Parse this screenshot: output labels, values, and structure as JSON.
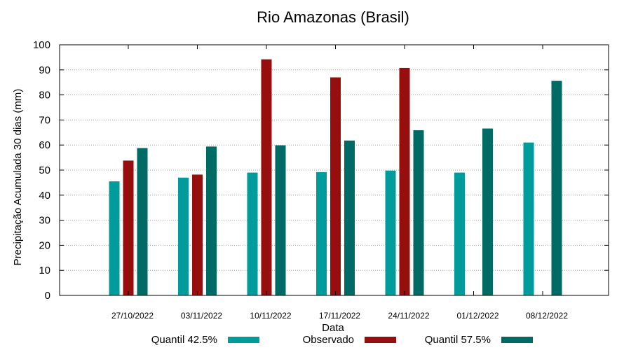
{
  "chart_data": {
    "type": "bar",
    "title": "Rio Amazonas (Brasil)",
    "xlabel": "Data",
    "ylabel": "Precipitação Acumulada 30 dias (mm)",
    "ylim": [
      0,
      100
    ],
    "yticks": [
      0,
      10,
      20,
      30,
      40,
      50,
      60,
      70,
      80,
      90,
      100
    ],
    "grid": true,
    "legend_position": "bottom",
    "categories": [
      "27/10/2022",
      "03/11/2022",
      "10/11/2022",
      "17/11/2022",
      "24/11/2022",
      "01/12/2022",
      "08/12/2022"
    ],
    "series": [
      {
        "name": "Quantil 42.5%",
        "color": "#009b9b",
        "values": [
          45.5,
          47,
          49,
          49.2,
          49.8,
          49,
          61
        ]
      },
      {
        "name": "Observado",
        "color": "#960e0e",
        "values": [
          53.8,
          48.2,
          94.2,
          87,
          90.8,
          null,
          null
        ]
      },
      {
        "name": "Quantil 57.5%",
        "color": "#006a64",
        "values": [
          58.8,
          59.4,
          59.9,
          61.8,
          65.9,
          66.6,
          85.6
        ]
      }
    ]
  }
}
